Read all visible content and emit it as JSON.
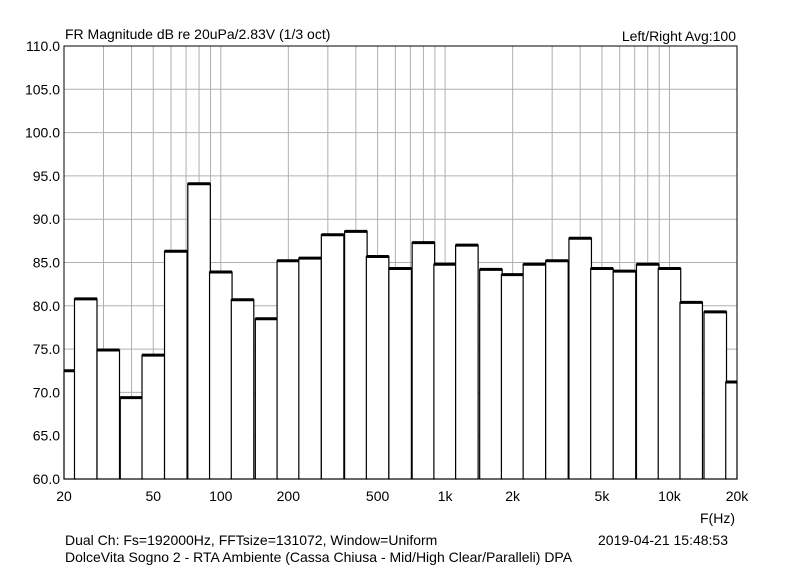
{
  "chart_data": {
    "type": "bar",
    "title": "FR Magnitude dB re 20uPa/2.83V (1/3 oct)",
    "info": "Left/Right  Avg:100",
    "xlabel": "F(Hz)",
    "ylabel": "",
    "x_scale": "log",
    "xlim": [
      20,
      20000
    ],
    "ylim": [
      60,
      110
    ],
    "grid": true,
    "y_ticks": [
      "60.0",
      "65.0",
      "70.0",
      "75.0",
      "80.0",
      "85.0",
      "90.0",
      "95.0",
      "100.0",
      "105.0",
      "110.0"
    ],
    "x_ticks": [
      {
        "value": 20,
        "label": "20"
      },
      {
        "value": 50,
        "label": "50"
      },
      {
        "value": 100,
        "label": "100"
      },
      {
        "value": 200,
        "label": "200"
      },
      {
        "value": 500,
        "label": "500"
      },
      {
        "value": 1000,
        "label": "1k"
      },
      {
        "value": 2000,
        "label": "2k"
      },
      {
        "value": 5000,
        "label": "5k"
      },
      {
        "value": 10000,
        "label": "10k"
      },
      {
        "value": 20000,
        "label": "20k"
      }
    ],
    "categories": [
      20,
      25,
      31.5,
      40,
      50,
      63,
      80,
      100,
      125,
      160,
      200,
      250,
      315,
      400,
      500,
      630,
      800,
      1000,
      1250,
      1600,
      2000,
      2500,
      3150,
      4000,
      5000,
      6300,
      8000,
      10000,
      12500,
      16000,
      20000
    ],
    "values": [
      72.5,
      80.8,
      74.9,
      69.4,
      74.3,
      86.3,
      94.1,
      83.9,
      80.7,
      78.5,
      85.2,
      85.5,
      88.2,
      88.6,
      85.7,
      84.3,
      87.3,
      84.8,
      87.0,
      84.2,
      83.6,
      84.8,
      85.2,
      87.8,
      84.3,
      84.0,
      84.8,
      84.3,
      80.4,
      79.3,
      71.2
    ]
  },
  "footer": {
    "line1": "Dual Ch: Fs=192000Hz, FFTsize=131072, Window=Uniform",
    "line2": "DolceVita Sogno 2 - RTA Ambiente (Cassa Chiusa - Mid/High Clear/Paralleli)     DPA",
    "date": "2019-04-21  15:48:53"
  }
}
